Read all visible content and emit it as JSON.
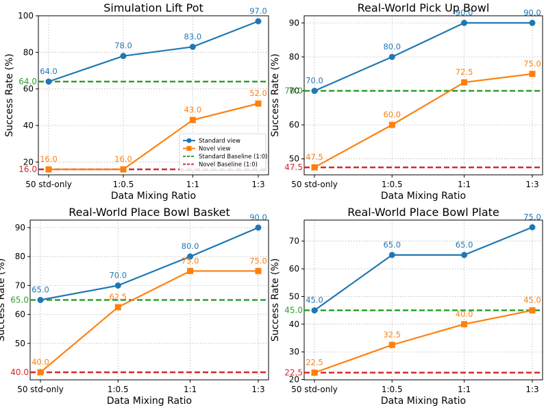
{
  "colors": {
    "standard": "#1f77b4",
    "novel": "#ff7f0e",
    "std_baseline": "#2ca02c",
    "novel_baseline": "#d62728",
    "grid": "#b0b0b0",
    "axis": "#000000"
  },
  "chart_data": [
    {
      "type": "line",
      "title": "Simulation Lift Pot",
      "xlabel": "Data Mixing Ratio",
      "ylabel": "Success Rate (%)",
      "categories": [
        "50 std-only",
        "1:0.5",
        "1:1",
        "1:3"
      ],
      "ylim": [
        13,
        100
      ],
      "yticks": [
        20,
        40,
        60,
        80,
        100
      ],
      "grid": true,
      "legend": "center-right",
      "series": [
        {
          "name": "Standard view",
          "values": [
            64.0,
            78.0,
            83.0,
            97.0
          ],
          "labels": [
            "64.0",
            "78.0",
            "83.0",
            "97.0"
          ]
        },
        {
          "name": "Novel view",
          "values": [
            16.0,
            16.0,
            43.0,
            52.0
          ],
          "labels": [
            "16.0",
            "16.0",
            "43.0",
            "52.0"
          ]
        }
      ],
      "baselines": [
        {
          "name": "Standard Baseline (1:0)",
          "value": 64.0,
          "label": "64.0"
        },
        {
          "name": "Novel Baseline (1:0)",
          "value": 16.0,
          "label": "16.0"
        }
      ]
    },
    {
      "type": "line",
      "title": "Real-World Pick Up Bowl",
      "xlabel": "Data Mixing Ratio",
      "ylabel": "Success Rate (%)",
      "categories": [
        "50 std-only",
        "1:0.5",
        "1:1",
        "1:3"
      ],
      "ylim": [
        45.3,
        92.1
      ],
      "yticks": [
        50,
        60,
        70,
        80,
        90
      ],
      "grid": true,
      "series": [
        {
          "name": "Standard view",
          "values": [
            70.0,
            80.0,
            90.0,
            90.0
          ],
          "labels": [
            "70.0",
            "80.0",
            "90.0",
            "90.0"
          ]
        },
        {
          "name": "Novel view",
          "values": [
            47.5,
            60.0,
            72.5,
            75.0
          ],
          "labels": [
            "47.5",
            "60.0",
            "72.5",
            "75.0"
          ]
        }
      ],
      "baselines": [
        {
          "name": "Standard Baseline (1:0)",
          "value": 70.0,
          "label": "70.0"
        },
        {
          "name": "Novel Baseline (1:0)",
          "value": 47.5,
          "label": "47.5"
        }
      ]
    },
    {
      "type": "line",
      "title": "Real-World Place Bowl Basket",
      "xlabel": "Data Mixing Ratio",
      "ylabel": "Success Rate (%)",
      "categories": [
        "50 std-only",
        "1:0.5",
        "1:1",
        "1:3"
      ],
      "ylim": [
        37.4,
        92.6
      ],
      "yticks": [
        50,
        60,
        70,
        80,
        90
      ],
      "grid": true,
      "series": [
        {
          "name": "Standard view",
          "values": [
            65.0,
            70.0,
            80.0,
            90.0
          ],
          "labels": [
            "65.0",
            "70.0",
            "80.0",
            "90.0"
          ]
        },
        {
          "name": "Novel view",
          "values": [
            40.0,
            62.5,
            75.0,
            75.0
          ],
          "labels": [
            "40.0",
            "62.5",
            "75.0",
            "75.0"
          ]
        }
      ],
      "baselines": [
        {
          "name": "Standard Baseline (1:0)",
          "value": 65.0,
          "label": "65.0"
        },
        {
          "name": "Novel Baseline (1:0)",
          "value": 40.0,
          "label": "40.0"
        }
      ]
    },
    {
      "type": "line",
      "title": "Real-World Place Bowl Plate",
      "xlabel": "Data Mixing Ratio",
      "ylabel": "Success Rate (%)",
      "categories": [
        "50 std-only",
        "1:0.5",
        "1:1",
        "1:3"
      ],
      "ylim": [
        19.9,
        77.6
      ],
      "yticks": [
        20,
        30,
        40,
        50,
        60,
        70
      ],
      "grid": true,
      "series": [
        {
          "name": "Standard view",
          "values": [
            45.0,
            65.0,
            65.0,
            75.0
          ],
          "labels": [
            "45.0",
            "65.0",
            "65.0",
            "75.0"
          ]
        },
        {
          "name": "Novel view",
          "values": [
            22.5,
            32.5,
            40.0,
            45.0
          ],
          "labels": [
            "22.5",
            "32.5",
            "40.0",
            "45.0"
          ]
        }
      ],
      "baselines": [
        {
          "name": "Standard Baseline (1:0)",
          "value": 45.0,
          "label": "45.0"
        },
        {
          "name": "Novel Baseline (1:0)",
          "value": 22.5,
          "label": "22.5"
        }
      ]
    }
  ]
}
